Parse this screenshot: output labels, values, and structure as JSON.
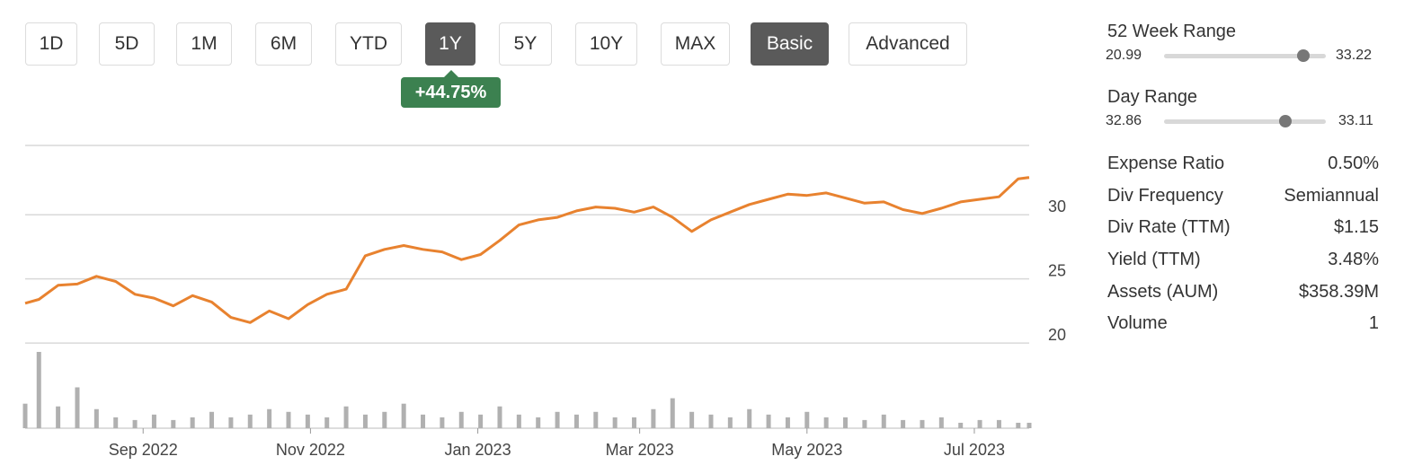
{
  "toolbar": {
    "ranges": [
      "1D",
      "5D",
      "1M",
      "6M",
      "YTD",
      "1Y",
      "5Y",
      "10Y",
      "MAX"
    ],
    "active_range": "1Y",
    "modes": [
      "Basic",
      "Advanced"
    ],
    "active_mode": "Basic"
  },
  "change_badge": "+44.75%",
  "stats": {
    "week52": {
      "label": "52 Week Range",
      "low": "20.99",
      "high": "33.22",
      "position": 0.86
    },
    "day": {
      "label": "Day Range",
      "low": "32.86",
      "high": "33.11",
      "position": 0.75
    },
    "rows": [
      {
        "label": "Expense Ratio",
        "value": "0.50%"
      },
      {
        "label": "Div Frequency",
        "value": "Semiannual"
      },
      {
        "label": "Div Rate (TTM)",
        "value": "$1.15"
      },
      {
        "label": "Yield (TTM)",
        "value": "3.48%"
      },
      {
        "label": "Assets (AUM)",
        "value": "$358.39M"
      },
      {
        "label": "Volume",
        "value": "1"
      }
    ]
  },
  "colors": {
    "line": "#e8822f",
    "volume": "#b0b0b0",
    "grid": "#d9d9d9",
    "badge": "#3c8150",
    "active_button": "#5a5a5a"
  },
  "chart_data": {
    "type": "line",
    "x_ticks": [
      "Sep 2022",
      "Nov 2022",
      "Jan 2023",
      "Mar 2023",
      "May 2023",
      "Jul 2023"
    ],
    "y_ticks": [
      20,
      25,
      30
    ],
    "ylim": [
      19.8,
      35.4
    ],
    "x": [
      "2022-07-20",
      "2022-07-25",
      "2022-08-01",
      "2022-08-08",
      "2022-08-15",
      "2022-08-22",
      "2022-08-29",
      "2022-09-05",
      "2022-09-12",
      "2022-09-19",
      "2022-09-26",
      "2022-10-03",
      "2022-10-10",
      "2022-10-17",
      "2022-10-24",
      "2022-10-31",
      "2022-11-07",
      "2022-11-14",
      "2022-11-21",
      "2022-11-28",
      "2022-12-05",
      "2022-12-12",
      "2022-12-19",
      "2022-12-26",
      "2023-01-02",
      "2023-01-09",
      "2023-01-16",
      "2023-01-23",
      "2023-01-30",
      "2023-02-06",
      "2023-02-13",
      "2023-02-20",
      "2023-02-27",
      "2023-03-06",
      "2023-03-13",
      "2023-03-20",
      "2023-03-27",
      "2023-04-03",
      "2023-04-10",
      "2023-04-17",
      "2023-04-24",
      "2023-05-01",
      "2023-05-08",
      "2023-05-15",
      "2023-05-22",
      "2023-05-29",
      "2023-06-05",
      "2023-06-12",
      "2023-06-19",
      "2023-06-26",
      "2023-07-03",
      "2023-07-10",
      "2023-07-17",
      "2023-07-21"
    ],
    "series": [
      {
        "values": [
          23.1,
          23.4,
          24.5,
          24.6,
          25.2,
          24.8,
          23.8,
          23.5,
          22.9,
          23.7,
          23.2,
          22.0,
          21.6,
          22.5,
          21.9,
          23.0,
          23.8,
          24.2,
          26.8,
          27.3,
          27.6,
          27.3,
          27.1,
          26.5,
          26.9,
          28.0,
          29.2,
          29.6,
          29.8,
          30.3,
          30.6,
          30.5,
          30.2,
          30.6,
          29.8,
          28.7,
          29.6,
          30.2,
          30.8,
          31.2,
          31.6,
          31.5,
          31.7,
          31.3,
          30.9,
          31.0,
          30.4,
          30.1,
          30.5,
          31.0,
          31.2,
          31.4,
          32.8,
          32.9
        ]
      }
    ],
    "volume": [
      9,
      28,
      8,
      15,
      7,
      4,
      3,
      5,
      3,
      4,
      6,
      4,
      5,
      7,
      6,
      5,
      4,
      8,
      5,
      6,
      9,
      5,
      4,
      6,
      5,
      8,
      5,
      4,
      6,
      5,
      6,
      4,
      4,
      7,
      11,
      6,
      5,
      4,
      7,
      5,
      4,
      6,
      4,
      4,
      3,
      5,
      3,
      3,
      4,
      2,
      3,
      3,
      2,
      2
    ]
  }
}
